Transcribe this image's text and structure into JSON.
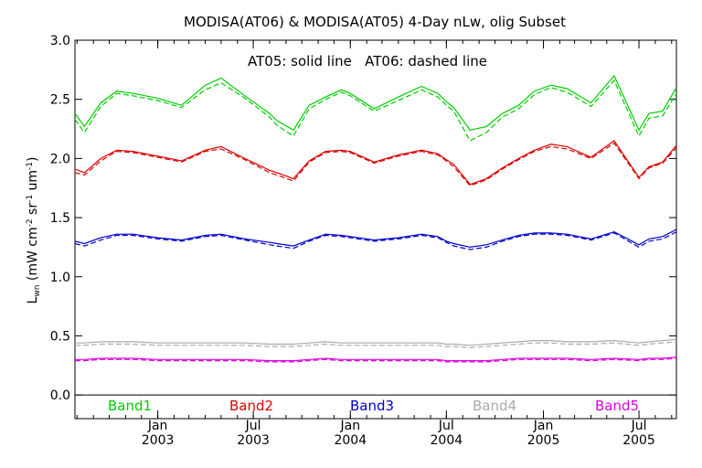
{
  "chart_data": {
    "type": "line",
    "title": "MODISA(AT06) & MODISA(AT05) 4-Day nLw, olig Subset",
    "annotation": "AT05: solid line   AT06: dashed line",
    "ylabel": {
      "main": "L",
      "sub": "wn",
      "units_open": " (mW cm",
      "sup1": "-2",
      "units_mid": " sr",
      "sup2": "-1",
      "units_mid2": " um",
      "sup3": "-1",
      "units_close": ")"
    },
    "ylim": [
      -0.2,
      3.0
    ],
    "yticks": [
      "0.0",
      "0.5",
      "1.0",
      "1.5",
      "2.0",
      "2.5",
      "3.0"
    ],
    "ytick_values": [
      0.0,
      0.5,
      1.0,
      1.5,
      2.0,
      2.5,
      3.0
    ],
    "xlim": [
      "2002-07-28",
      "2005-09-10"
    ],
    "xticks": [
      {
        "date": "2003-01-01",
        "month": "Jan",
        "year": "2003"
      },
      {
        "date": "2003-07-01",
        "month": "Jul",
        "year": "2003"
      },
      {
        "date": "2004-01-01",
        "month": "Jan",
        "year": "2004"
      },
      {
        "date": "2004-07-01",
        "month": "Jul",
        "year": "2004"
      },
      {
        "date": "2005-01-01",
        "month": "Jan",
        "year": "2005"
      },
      {
        "date": "2005-07-01",
        "month": "Jul",
        "year": "2005"
      }
    ],
    "x": [
      "2002-07-28",
      "2002-08-15",
      "2002-09-15",
      "2002-10-15",
      "2002-11-15",
      "2003-01-01",
      "2003-02-15",
      "2003-04-01",
      "2003-05-01",
      "2003-06-15",
      "2003-08-01",
      "2003-08-15",
      "2003-09-15",
      "2003-10-15",
      "2003-11-15",
      "2003-12-15",
      "2004-01-01",
      "2004-02-15",
      "2004-04-01",
      "2004-05-15",
      "2004-06-15",
      "2004-07-01",
      "2004-07-15",
      "2004-08-15",
      "2004-09-15",
      "2004-10-15",
      "2004-11-15",
      "2004-12-15",
      "2005-01-15",
      "2005-02-15",
      "2005-04-01",
      "2005-05-15",
      "2005-07-01",
      "2005-07-20",
      "2005-08-15",
      "2005-09-10"
    ],
    "series": [
      {
        "name": "Band1",
        "color": "#00cc00",
        "solid": [
          2.38,
          2.27,
          2.47,
          2.57,
          2.55,
          2.51,
          2.45,
          2.62,
          2.68,
          2.53,
          2.38,
          2.32,
          2.24,
          2.45,
          2.52,
          2.58,
          2.55,
          2.42,
          2.52,
          2.61,
          2.55,
          2.48,
          2.43,
          2.24,
          2.27,
          2.38,
          2.45,
          2.57,
          2.62,
          2.59,
          2.47,
          2.7,
          2.24,
          2.38,
          2.4,
          2.6
        ],
        "dashed": [
          2.33,
          2.22,
          2.44,
          2.55,
          2.53,
          2.49,
          2.43,
          2.58,
          2.64,
          2.51,
          2.35,
          2.28,
          2.19,
          2.42,
          2.5,
          2.56,
          2.53,
          2.4,
          2.49,
          2.58,
          2.52,
          2.45,
          2.4,
          2.15,
          2.22,
          2.35,
          2.42,
          2.54,
          2.6,
          2.56,
          2.44,
          2.66,
          2.19,
          2.34,
          2.36,
          2.55
        ]
      },
      {
        "name": "Band2",
        "color": "#dd0000",
        "solid": [
          1.91,
          1.88,
          2.0,
          2.07,
          2.06,
          2.02,
          1.98,
          2.07,
          2.1,
          2.0,
          1.9,
          1.88,
          1.83,
          1.98,
          2.06,
          2.07,
          2.06,
          1.97,
          2.03,
          2.07,
          2.04,
          1.99,
          1.95,
          1.78,
          1.83,
          1.92,
          2.0,
          2.07,
          2.12,
          2.1,
          2.01,
          2.15,
          1.84,
          1.93,
          1.97,
          2.11
        ],
        "dashed": [
          1.88,
          1.86,
          1.98,
          2.06,
          2.05,
          2.01,
          1.97,
          2.06,
          2.08,
          1.99,
          1.88,
          1.86,
          1.81,
          1.97,
          2.05,
          2.06,
          2.05,
          1.96,
          2.02,
          2.06,
          2.03,
          1.98,
          1.93,
          1.77,
          1.82,
          1.91,
          1.99,
          2.06,
          2.1,
          2.08,
          2.0,
          2.13,
          1.83,
          1.92,
          1.96,
          2.09
        ]
      },
      {
        "name": "Band3",
        "color": "#0000cc",
        "solid": [
          1.3,
          1.28,
          1.33,
          1.36,
          1.36,
          1.33,
          1.31,
          1.35,
          1.36,
          1.32,
          1.29,
          1.28,
          1.26,
          1.31,
          1.36,
          1.35,
          1.34,
          1.31,
          1.33,
          1.36,
          1.34,
          1.3,
          1.28,
          1.25,
          1.27,
          1.31,
          1.35,
          1.37,
          1.37,
          1.36,
          1.32,
          1.38,
          1.27,
          1.32,
          1.34,
          1.4
        ],
        "dashed": [
          1.28,
          1.26,
          1.31,
          1.35,
          1.35,
          1.32,
          1.3,
          1.34,
          1.35,
          1.31,
          1.27,
          1.26,
          1.24,
          1.3,
          1.35,
          1.34,
          1.33,
          1.3,
          1.32,
          1.35,
          1.33,
          1.29,
          1.26,
          1.23,
          1.25,
          1.3,
          1.34,
          1.36,
          1.36,
          1.35,
          1.31,
          1.37,
          1.25,
          1.3,
          1.32,
          1.38
        ]
      },
      {
        "name": "Band4",
        "color": "#aaaaaa",
        "solid": [
          0.44,
          0.44,
          0.45,
          0.45,
          0.45,
          0.44,
          0.44,
          0.44,
          0.44,
          0.44,
          0.43,
          0.43,
          0.43,
          0.44,
          0.45,
          0.44,
          0.44,
          0.44,
          0.44,
          0.44,
          0.44,
          0.43,
          0.43,
          0.42,
          0.43,
          0.44,
          0.45,
          0.46,
          0.46,
          0.45,
          0.45,
          0.46,
          0.44,
          0.45,
          0.46,
          0.47
        ],
        "dashed": [
          0.42,
          0.42,
          0.43,
          0.43,
          0.43,
          0.42,
          0.42,
          0.42,
          0.42,
          0.42,
          0.41,
          0.41,
          0.41,
          0.42,
          0.43,
          0.42,
          0.42,
          0.42,
          0.42,
          0.42,
          0.42,
          0.41,
          0.41,
          0.4,
          0.41,
          0.42,
          0.43,
          0.44,
          0.44,
          0.43,
          0.43,
          0.44,
          0.42,
          0.43,
          0.44,
          0.45
        ]
      },
      {
        "name": "Band5",
        "color": "#dd00dd",
        "solid": [
          0.3,
          0.3,
          0.31,
          0.31,
          0.31,
          0.3,
          0.3,
          0.3,
          0.3,
          0.3,
          0.29,
          0.29,
          0.29,
          0.3,
          0.31,
          0.3,
          0.3,
          0.3,
          0.3,
          0.3,
          0.3,
          0.29,
          0.29,
          0.29,
          0.29,
          0.3,
          0.31,
          0.31,
          0.31,
          0.31,
          0.3,
          0.31,
          0.3,
          0.31,
          0.31,
          0.32
        ],
        "dashed": [
          0.29,
          0.29,
          0.3,
          0.3,
          0.3,
          0.29,
          0.29,
          0.29,
          0.29,
          0.29,
          0.28,
          0.28,
          0.28,
          0.29,
          0.3,
          0.29,
          0.29,
          0.29,
          0.29,
          0.29,
          0.29,
          0.28,
          0.28,
          0.28,
          0.28,
          0.29,
          0.3,
          0.3,
          0.3,
          0.3,
          0.29,
          0.3,
          0.29,
          0.3,
          0.3,
          0.31
        ]
      }
    ],
    "legend_placement": "bottom (inside plot, below 0.0)",
    "grid": false
  }
}
